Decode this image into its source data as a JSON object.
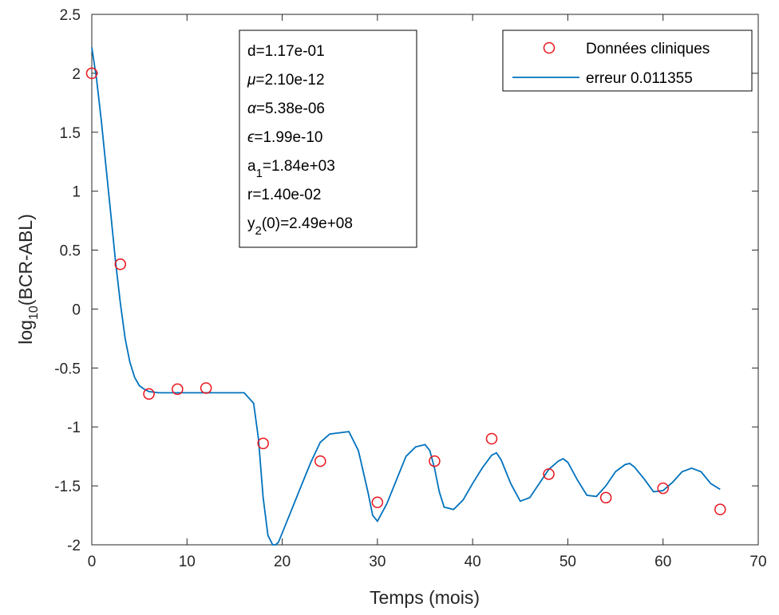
{
  "chart_data": {
    "type": "line",
    "xlabel": "Temps (mois)",
    "ylabel_main": "log",
    "ylabel_sub": "10",
    "ylabel_rest": "(BCR-ABL)",
    "xlim": [
      0,
      70
    ],
    "ylim": [
      -2,
      2.5
    ],
    "xticks": [
      0,
      10,
      20,
      30,
      40,
      50,
      60,
      70
    ],
    "yticks": [
      -2,
      -1.5,
      -1,
      -0.5,
      0,
      0.5,
      1,
      1.5,
      2,
      2.5
    ],
    "xtick_labels": [
      "0",
      "10",
      "20",
      "30",
      "40",
      "50",
      "60",
      "70"
    ],
    "ytick_labels": [
      "-2",
      "-1.5",
      "-1",
      "-0.5",
      "0",
      "0.5",
      "1",
      "1.5",
      "2",
      "2.5"
    ],
    "grid": false,
    "legend_position": "top-right",
    "series": [
      {
        "name": "Données cliniques",
        "kind": "markers",
        "color": "#e8141c",
        "x": [
          0,
          3,
          6,
          9,
          12,
          18,
          24,
          30,
          36,
          42,
          48,
          54,
          60,
          66
        ],
        "y": [
          2.0,
          0.38,
          -0.72,
          -0.68,
          -0.67,
          -1.14,
          -1.29,
          -1.64,
          -1.29,
          -1.1,
          -1.4,
          -1.6,
          -1.52,
          -1.7
        ]
      },
      {
        "name": "erreur 0.011355",
        "kind": "line",
        "color": "#0072bd",
        "x": [
          0,
          0.5,
          1,
          1.5,
          2,
          2.5,
          3,
          3.5,
          4,
          4.5,
          5,
          5.5,
          6,
          7,
          8,
          10,
          12,
          14,
          16,
          17,
          17.5,
          18,
          18.5,
          19,
          19.3,
          19.6,
          20,
          21,
          22,
          23,
          24,
          25,
          26,
          27,
          28,
          29,
          29.5,
          30,
          31,
          32,
          33,
          34,
          35,
          35.5,
          36,
          36.5,
          37,
          38,
          39,
          40,
          41,
          42,
          42.5,
          43,
          44,
          45,
          46,
          47,
          48,
          49,
          49.5,
          50,
          51,
          52,
          53,
          54,
          55,
          56,
          56.5,
          57,
          58,
          59,
          60,
          61,
          62,
          63,
          64,
          65,
          66
        ],
        "y": [
          2.22,
          1.95,
          1.6,
          1.2,
          0.8,
          0.4,
          0.05,
          -0.25,
          -0.45,
          -0.58,
          -0.65,
          -0.68,
          -0.7,
          -0.71,
          -0.71,
          -0.71,
          -0.71,
          -0.71,
          -0.71,
          -0.8,
          -1.1,
          -1.6,
          -1.92,
          -2.0,
          -2.0,
          -1.98,
          -1.9,
          -1.7,
          -1.5,
          -1.3,
          -1.13,
          -1.06,
          -1.05,
          -1.04,
          -1.2,
          -1.55,
          -1.75,
          -1.8,
          -1.65,
          -1.45,
          -1.25,
          -1.17,
          -1.15,
          -1.2,
          -1.35,
          -1.55,
          -1.68,
          -1.7,
          -1.62,
          -1.48,
          -1.35,
          -1.24,
          -1.22,
          -1.28,
          -1.48,
          -1.63,
          -1.6,
          -1.48,
          -1.36,
          -1.29,
          -1.27,
          -1.3,
          -1.45,
          -1.58,
          -1.59,
          -1.5,
          -1.38,
          -1.32,
          -1.31,
          -1.34,
          -1.44,
          -1.55,
          -1.54,
          -1.47,
          -1.38,
          -1.35,
          -1.38,
          -1.48,
          -1.53
        ]
      }
    ]
  },
  "parameter_box": {
    "lines": [
      {
        "prefix": "d",
        "sub": "",
        "value": "=1.17e-01"
      },
      {
        "prefix": "μ",
        "sub": "",
        "value": "=2.10e-12"
      },
      {
        "prefix": "α",
        "sub": "",
        "value": "=5.38e-06"
      },
      {
        "prefix": "ϵ",
        "sub": "",
        "value": "=1.99e-10"
      },
      {
        "prefix": "a",
        "sub": "1",
        "value": "=1.84e+03"
      },
      {
        "prefix": "r",
        "sub": "",
        "value": "=1.40e-02"
      },
      {
        "prefix": "y",
        "sub": "2",
        "value": "(0)=2.49e+08"
      }
    ]
  },
  "colors": {
    "axis": "#262626",
    "marker": "#e8141c",
    "line": "#0072bd"
  }
}
